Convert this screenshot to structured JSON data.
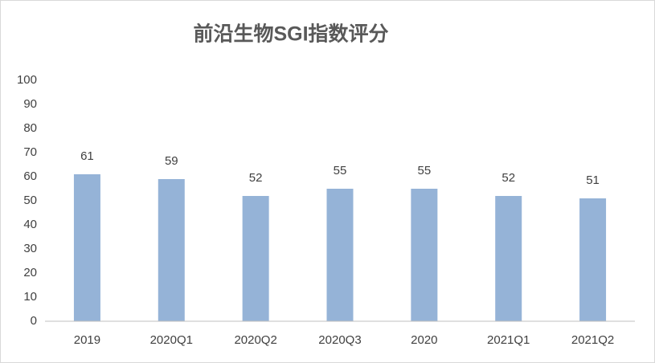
{
  "chart_data": {
    "type": "bar",
    "title": "前沿生物SGI指数评分",
    "categories": [
      "2019",
      "2020Q1",
      "2020Q2",
      "2020Q3",
      "2020",
      "2021Q1",
      "2021Q2"
    ],
    "values": [
      61,
      59,
      52,
      55,
      55,
      52,
      51
    ],
    "color": "#95b3d7",
    "ylim": [
      0,
      100
    ],
    "yticks": [
      0,
      10,
      20,
      30,
      40,
      50,
      60,
      70,
      80,
      90,
      100
    ],
    "grid": false
  }
}
